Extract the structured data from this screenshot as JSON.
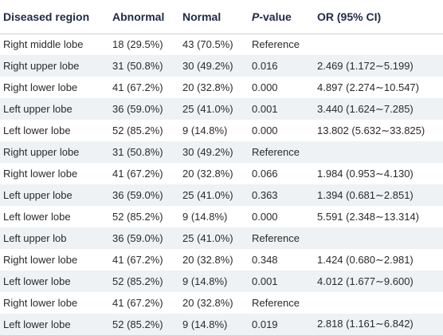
{
  "headers": {
    "region": "Diseased region",
    "abnormal": "Abnormal",
    "normal": "Normal",
    "p_italic": "P",
    "p_suffix": "-value",
    "or": "OR (95% CI)"
  },
  "rows": [
    {
      "region": "Right middle lobe",
      "abnormal": "18 (29.5%)",
      "normal": "43 (70.5%)",
      "p": "Reference",
      "or": ""
    },
    {
      "region": "Right upper lobe",
      "abnormal": "31 (50.8%)",
      "normal": "30 (49.2%)",
      "p": "0.016",
      "or": "2.469 (1.172∼5.199)"
    },
    {
      "region": "Right lower lobe",
      "abnormal": "41 (67.2%)",
      "normal": "20 (32.8%)",
      "p": "0.000",
      "or": "4.897 (2.274∼10.547)"
    },
    {
      "region": "Left upper lobe",
      "abnormal": "36 (59.0%)",
      "normal": "25 (41.0%)",
      "p": "0.001",
      "or": "3.440 (1.624∼7.285)"
    },
    {
      "region": "Left lower lobe",
      "abnormal": "52 (85.2%)",
      "normal": "9 (14.8%)",
      "p": "0.000",
      "or": "13.802 (5.632∼33.825)"
    },
    {
      "region": "Right upper lobe",
      "abnormal": "31 (50.8%)",
      "normal": "30 (49.2%)",
      "p": "Reference",
      "or": ""
    },
    {
      "region": "Right lower lobe",
      "abnormal": "41 (67.2%)",
      "normal": "20 (32.8%)",
      "p": "0.066",
      "or": "1.984 (0.953∼4.130)"
    },
    {
      "region": "Left upper lobe",
      "abnormal": "36 (59.0%)",
      "normal": "25 (41.0%)",
      "p": "0.363",
      "or": "1.394 (0.681∼2.851)"
    },
    {
      "region": "Left lower lobe",
      "abnormal": "52 (85.2%)",
      "normal": "9 (14.8%)",
      "p": "0.000",
      "or": "5.591 (2.348∼13.314)"
    },
    {
      "region": "Left upper lob",
      "abnormal": "36 (59.0%)",
      "normal": "25 (41.0%)",
      "p": "Reference",
      "or": ""
    },
    {
      "region": "Right lower lobe",
      "abnormal": "41 (67.2%)",
      "normal": "20 (32.8%)",
      "p": "0.348",
      "or": "1.424 (0.680∼2.981)"
    },
    {
      "region": "Left lower lobe",
      "abnormal": "52 (85.2%)",
      "normal": "9 (14.8%)",
      "p": "0.001",
      "or": "4.012 (1.677∼9.600)"
    },
    {
      "region": "Right lower lobe",
      "abnormal": "41 (67.2%)",
      "normal": "20 (32.8%)",
      "p": "Reference",
      "or": ""
    },
    {
      "region": "Left lower lobe",
      "abnormal": "52 (85.2%)",
      "normal": "9 (14.8%)",
      "p": "0.019",
      "or": "2.818 (1.161∼6.842)"
    }
  ]
}
